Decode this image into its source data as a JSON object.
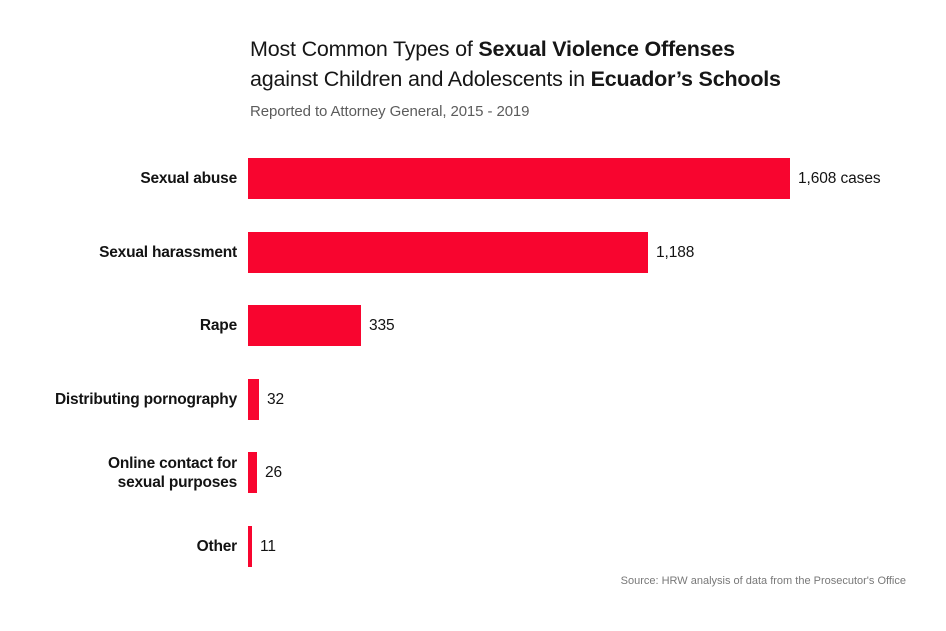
{
  "header": {
    "title_line1_regular": "Most Common Types of ",
    "title_line1_bold": "Sexual Violence Offenses",
    "title_line2_regular": "against Children and Adolescents in ",
    "title_line2_bold": "Ecuador’s Schools",
    "subtitle": "Reported to Attorney General, 2015 - 2019"
  },
  "chart_data": {
    "type": "bar",
    "orientation": "horizontal",
    "title": "Most Common Types of Sexual Violence Offenses against Children and Adolescents in Ecuador’s Schools",
    "subtitle": "Reported to Attorney General, 2015 - 2019",
    "categories": [
      "Sexual abuse",
      "Sexual harassment",
      "Rape",
      "Distributing pornography",
      "Online contact for\nsexual purposes",
      "Other"
    ],
    "values": [
      1608,
      1188,
      335,
      32,
      26,
      11
    ],
    "value_labels": [
      "1,608 cases",
      "1,188",
      "335",
      "32",
      "26",
      "11"
    ],
    "xlim": [
      0,
      1608
    ],
    "grid": false,
    "legend": "none",
    "bar_color": "#f8052f",
    "source": "Source: HRW analysis of data from the Prosecutor's Office"
  },
  "footer": {
    "source": "Source: HRW analysis of data from the Prosecutor's Office"
  },
  "colors": {
    "bar": "#f8052f",
    "title_text": "#161616",
    "subtitle_text": "#5c5c5c",
    "label_text": "#131313",
    "source_text": "#787878",
    "background": "#ffffff"
  }
}
